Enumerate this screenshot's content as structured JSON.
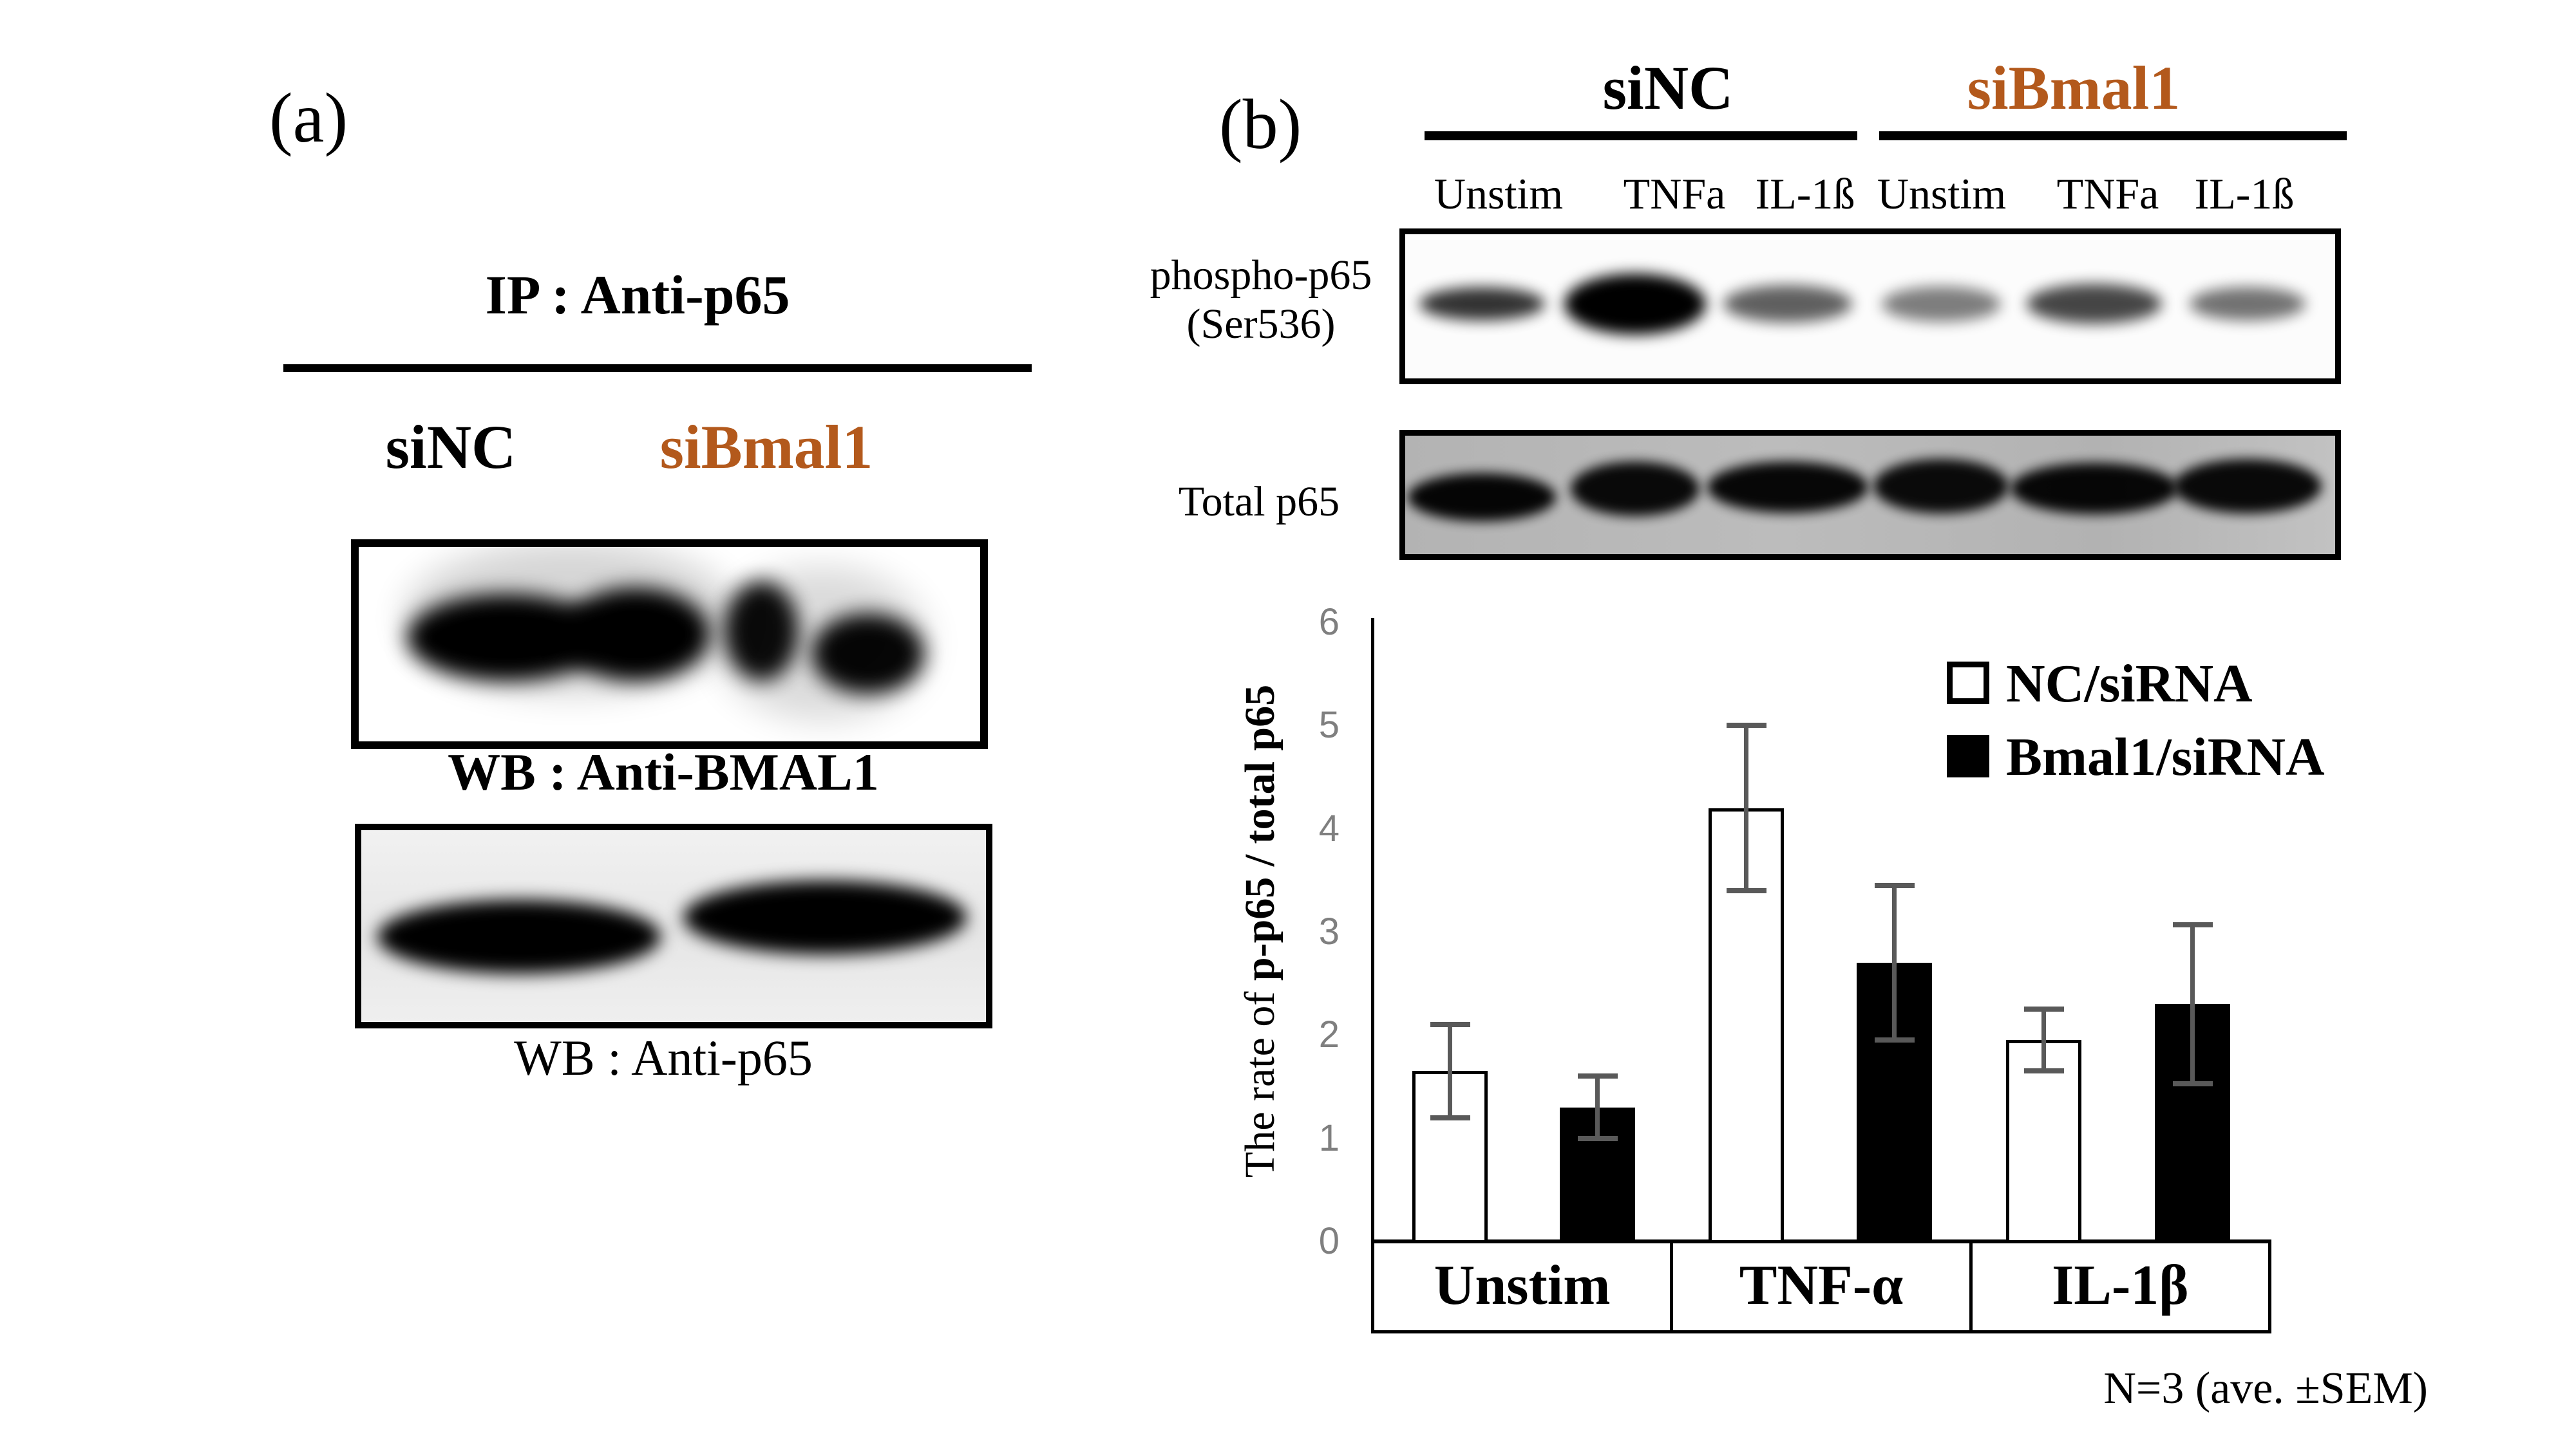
{
  "colors": {
    "accent_orange": "#b3591c",
    "tick_gray": "#7f7f7f",
    "error_bar_gray": "#595959",
    "total_blot_background": "#b6b6b6"
  },
  "panel_a": {
    "label": "(a)",
    "ip_title": "IP : Anti-p65",
    "lane1": "siNC",
    "lane2": "siBmal1",
    "blot1_caption": "WB : Anti-BMAL1",
    "blot2_caption": "WB : Anti-p65"
  },
  "panel_b": {
    "label": "(b)",
    "group1": "siNC",
    "group2": "siBmal1",
    "lane_labels": [
      "Unstim",
      "TNFa",
      "IL-1ß",
      "Unstim",
      "TNFa",
      "IL-1ß"
    ],
    "phospho_label_line1": "phospho-p65",
    "phospho_label_line2": "(Ser536)",
    "total_label": "Total p65",
    "phospho_band_intensities": [
      0.8,
      1.0,
      0.62,
      0.5,
      0.72,
      0.55
    ],
    "total_band_intensities": [
      0.97,
      0.95,
      0.96,
      0.94,
      0.96,
      0.95
    ],
    "note": "N=3 (ave. ±SEM)"
  },
  "chart_data": {
    "type": "bar",
    "title": "",
    "categories": [
      "Unstim",
      "TNF-α",
      "IL-1β"
    ],
    "series": [
      {
        "name": "NC/siRNA",
        "fill": "#ffffff",
        "values": [
          1.65,
          4.2,
          1.95
        ],
        "errors": [
          0.45,
          0.8,
          0.3
        ]
      },
      {
        "name": "Bmal1/siRNA",
        "fill": "#000000",
        "values": [
          1.3,
          2.7,
          2.3
        ],
        "errors": [
          0.3,
          0.75,
          0.77
        ]
      }
    ],
    "ylabel_regular": "The rate of ",
    "ylabel_bold": "p-p65 / total p65",
    "ylim": [
      0,
      6
    ],
    "yticks": [
      0,
      1,
      2,
      3,
      4,
      5,
      6
    ],
    "legend_position": "upper-right",
    "grid": false
  }
}
